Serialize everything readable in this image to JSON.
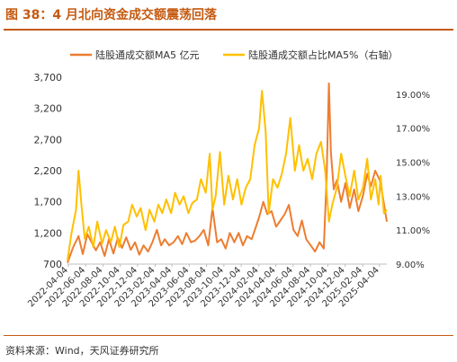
{
  "figure_title": "图 38：4 月北向资金成交额震荡回落",
  "source_note": "资料来源：Wind，天风证券研究所",
  "colors": {
    "accent": "#C55A11",
    "series_volume": "#ED7D31",
    "series_share": "#FFC000",
    "text": "#333333"
  },
  "chart_data": {
    "type": "line",
    "title": "",
    "xlabel": "",
    "ylabel": "",
    "y2label": "",
    "grid": false,
    "legend_position": "top",
    "x_start": "2022-04-01",
    "x_end": "2025-04-30",
    "ylim": [
      700,
      3700
    ],
    "y2lim": [
      9.0,
      20.0
    ],
    "yticks": [
      700,
      1200,
      1700,
      2200,
      2700,
      3200,
      3700
    ],
    "yticks_labels": [
      "700",
      "1,200",
      "1,700",
      "2,200",
      "2,700",
      "3,200",
      "3,700"
    ],
    "y2ticks": [
      9,
      11,
      13,
      15,
      17,
      19
    ],
    "y2ticks_labels": [
      "9.00%",
      "11.00%",
      "13.00%",
      "15.00%",
      "17.00%",
      "19.00%"
    ],
    "xticks": [
      "2022-04-04",
      "2022-06-04",
      "2022-08-04",
      "2022-10-04",
      "2022-12-04",
      "2023-02-04",
      "2023-04-04",
      "2023-06-04",
      "2023-08-04",
      "2023-10-04",
      "2023-12-04",
      "2024-02-04",
      "2024-04-04",
      "2024-06-04",
      "2024-08-04",
      "2024-10-04",
      "2024-12-04",
      "2025-02-04",
      "2025-04-04"
    ],
    "series": [
      {
        "name": "陆股通成交额MA5 亿元",
        "axis": "left",
        "color": "#ED7D31",
        "points": [
          [
            "2022-04-01",
            720
          ],
          [
            "2022-04-20",
            960
          ],
          [
            "2022-05-10",
            1150
          ],
          [
            "2022-05-25",
            860
          ],
          [
            "2022-06-10",
            1180
          ],
          [
            "2022-06-25",
            1050
          ],
          [
            "2022-07-10",
            920
          ],
          [
            "2022-07-25",
            1050
          ],
          [
            "2022-08-10",
            830
          ],
          [
            "2022-08-25",
            1100
          ],
          [
            "2022-09-10",
            870
          ],
          [
            "2022-09-25",
            1120
          ],
          [
            "2022-10-10",
            960
          ],
          [
            "2022-10-25",
            1130
          ],
          [
            "2022-11-10",
            930
          ],
          [
            "2022-11-25",
            1050
          ],
          [
            "2022-12-10",
            850
          ],
          [
            "2022-12-25",
            1000
          ],
          [
            "2023-01-10",
            900
          ],
          [
            "2023-01-25",
            1050
          ],
          [
            "2023-02-10",
            1250
          ],
          [
            "2023-02-25",
            1000
          ],
          [
            "2023-03-10",
            1100
          ],
          [
            "2023-03-25",
            1000
          ],
          [
            "2023-04-10",
            1050
          ],
          [
            "2023-04-25",
            1150
          ],
          [
            "2023-05-10",
            1020
          ],
          [
            "2023-05-25",
            1200
          ],
          [
            "2023-06-10",
            1050
          ],
          [
            "2023-06-25",
            1080
          ],
          [
            "2023-07-10",
            1150
          ],
          [
            "2023-07-25",
            1250
          ],
          [
            "2023-08-10",
            1000
          ],
          [
            "2023-08-25",
            1600
          ],
          [
            "2023-09-10",
            1050
          ],
          [
            "2023-09-25",
            1100
          ],
          [
            "2023-10-10",
            950
          ],
          [
            "2023-10-25",
            1200
          ],
          [
            "2023-11-10",
            1050
          ],
          [
            "2023-11-25",
            1200
          ],
          [
            "2023-12-10",
            1000
          ],
          [
            "2023-12-25",
            1150
          ],
          [
            "2024-01-10",
            1100
          ],
          [
            "2024-01-25",
            1300
          ],
          [
            "2024-02-05",
            1450
          ],
          [
            "2024-02-20",
            1700
          ],
          [
            "2024-03-05",
            1500
          ],
          [
            "2024-03-20",
            1550
          ],
          [
            "2024-04-05",
            1300
          ],
          [
            "2024-04-20",
            1400
          ],
          [
            "2024-05-05",
            1500
          ],
          [
            "2024-05-20",
            1650
          ],
          [
            "2024-06-05",
            1250
          ],
          [
            "2024-06-20",
            1150
          ],
          [
            "2024-07-05",
            1400
          ],
          [
            "2024-07-20",
            1100
          ],
          [
            "2024-08-05",
            1000
          ],
          [
            "2024-08-20",
            900
          ],
          [
            "2024-09-05",
            1050
          ],
          [
            "2024-09-20",
            950
          ],
          [
            "2024-09-30",
            2100
          ],
          [
            "2024-10-08",
            3600
          ],
          [
            "2024-10-15",
            2500
          ],
          [
            "2024-10-25",
            1900
          ],
          [
            "2024-11-05",
            2050
          ],
          [
            "2024-11-20",
            1700
          ],
          [
            "2024-12-05",
            2000
          ],
          [
            "2024-12-20",
            1600
          ],
          [
            "2025-01-05",
            1900
          ],
          [
            "2025-01-20",
            1550
          ],
          [
            "2025-02-05",
            1800
          ],
          [
            "2025-02-20",
            2150
          ],
          [
            "2025-03-05",
            1950
          ],
          [
            "2025-03-20",
            2200
          ],
          [
            "2025-04-05",
            2050
          ],
          [
            "2025-04-15",
            1800
          ],
          [
            "2025-04-30",
            1380
          ]
        ]
      },
      {
        "name": "陆股通成交额占比MA5%（右轴）",
        "axis": "right",
        "color": "#FFC000",
        "points": [
          [
            "2022-04-01",
            9.2
          ],
          [
            "2022-04-15",
            10.8
          ],
          [
            "2022-05-01",
            12.2
          ],
          [
            "2022-05-10",
            14.5
          ],
          [
            "2022-05-20",
            12.5
          ],
          [
            "2022-06-01",
            10.5
          ],
          [
            "2022-06-15",
            11.2
          ],
          [
            "2022-07-01",
            10.0
          ],
          [
            "2022-07-15",
            11.5
          ],
          [
            "2022-08-01",
            10.2
          ],
          [
            "2022-08-15",
            11.0
          ],
          [
            "2022-09-01",
            10.3
          ],
          [
            "2022-09-15",
            11.2
          ],
          [
            "2022-10-01",
            10.0
          ],
          [
            "2022-10-15",
            11.3
          ],
          [
            "2022-11-01",
            11.5
          ],
          [
            "2022-11-15",
            12.5
          ],
          [
            "2022-12-01",
            11.8
          ],
          [
            "2022-12-15",
            12.3
          ],
          [
            "2023-01-01",
            11.0
          ],
          [
            "2023-01-15",
            12.2
          ],
          [
            "2023-02-01",
            11.5
          ],
          [
            "2023-02-15",
            12.5
          ],
          [
            "2023-03-01",
            12.0
          ],
          [
            "2023-03-15",
            12.8
          ],
          [
            "2023-04-01",
            12.0
          ],
          [
            "2023-04-15",
            13.2
          ],
          [
            "2023-05-01",
            12.5
          ],
          [
            "2023-05-15",
            13.0
          ],
          [
            "2023-06-01",
            12.0
          ],
          [
            "2023-06-15",
            12.6
          ],
          [
            "2023-07-01",
            12.8
          ],
          [
            "2023-07-15",
            14.0
          ],
          [
            "2023-08-01",
            13.2
          ],
          [
            "2023-08-15",
            15.5
          ],
          [
            "2023-08-25",
            12.2
          ],
          [
            "2023-09-05",
            13.0
          ],
          [
            "2023-09-20",
            15.6
          ],
          [
            "2023-10-05",
            12.5
          ],
          [
            "2023-10-20",
            14.2
          ],
          [
            "2023-11-05",
            12.8
          ],
          [
            "2023-11-20",
            14.0
          ],
          [
            "2023-12-05",
            12.5
          ],
          [
            "2023-12-20",
            13.5
          ],
          [
            "2024-01-05",
            14.0
          ],
          [
            "2024-01-20",
            16.0
          ],
          [
            "2024-02-05",
            17.0
          ],
          [
            "2024-02-15",
            19.2
          ],
          [
            "2024-02-28",
            16.8
          ],
          [
            "2024-03-10",
            12.0
          ],
          [
            "2024-03-25",
            14.0
          ],
          [
            "2024-04-10",
            13.5
          ],
          [
            "2024-04-25",
            14.3
          ],
          [
            "2024-05-10",
            15.5
          ],
          [
            "2024-05-25",
            17.6
          ],
          [
            "2024-06-10",
            14.5
          ],
          [
            "2024-06-25",
            16.0
          ],
          [
            "2024-07-10",
            14.5
          ],
          [
            "2024-07-25",
            15.2
          ],
          [
            "2024-08-10",
            14.0
          ],
          [
            "2024-08-25",
            15.5
          ],
          [
            "2024-09-10",
            16.2
          ],
          [
            "2024-09-25",
            14.5
          ],
          [
            "2024-10-08",
            11.5
          ],
          [
            "2024-10-20",
            12.5
          ],
          [
            "2024-11-05",
            13.5
          ],
          [
            "2024-11-20",
            15.5
          ],
          [
            "2024-12-05",
            14.2
          ],
          [
            "2024-12-20",
            13.0
          ],
          [
            "2025-01-05",
            14.5
          ],
          [
            "2025-01-20",
            12.8
          ],
          [
            "2025-02-05",
            13.5
          ],
          [
            "2025-02-20",
            15.2
          ],
          [
            "2025-03-05",
            12.8
          ],
          [
            "2025-03-20",
            14.0
          ],
          [
            "2025-04-01",
            12.5
          ],
          [
            "2025-04-08",
            14.2
          ],
          [
            "2025-04-20",
            12.0
          ],
          [
            "2025-04-30",
            12.2
          ]
        ]
      }
    ]
  }
}
